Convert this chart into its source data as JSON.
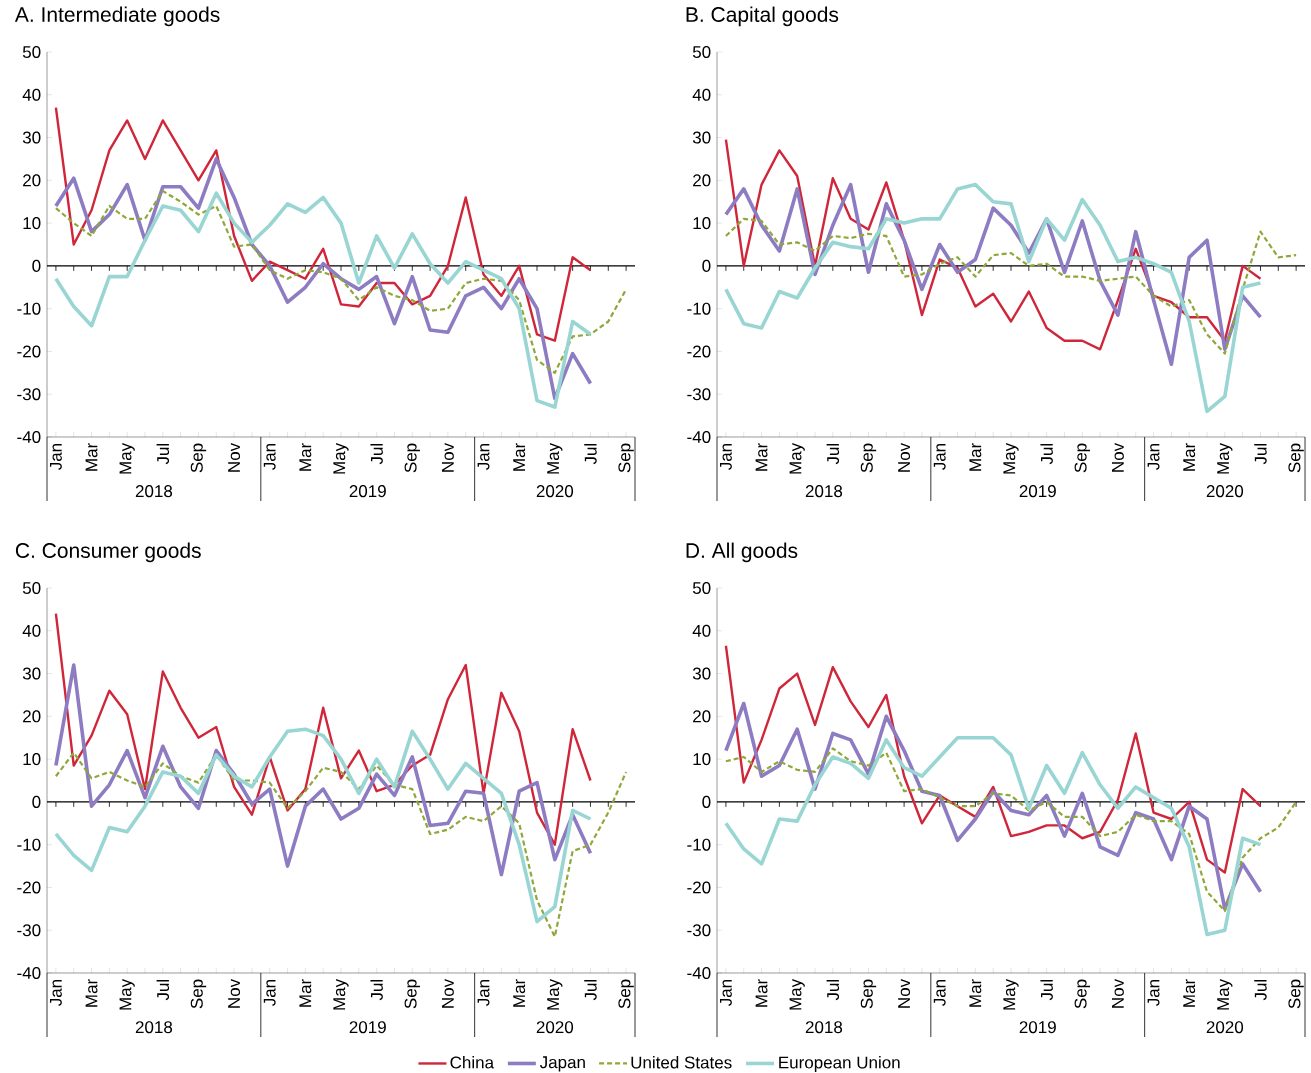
{
  "chart_data": [
    {
      "type": "line",
      "title": "A. Intermediate goods",
      "categories": [
        "Jan",
        null,
        "Mar",
        null,
        "May",
        null,
        "Jul",
        null,
        "Sep",
        null,
        "Nov",
        null,
        "Jan",
        null,
        "Mar",
        null,
        "May",
        null,
        "Jul",
        null,
        "Sep",
        null,
        "Nov",
        null,
        "Jan",
        null,
        "Mar",
        null,
        "May",
        null,
        "Jul",
        null,
        "Sep"
      ],
      "annotations": [
        "2018",
        "2019",
        "2020"
      ],
      "ylim": [
        -40,
        50
      ],
      "yticks": [
        -40,
        -30,
        -20,
        -10,
        0,
        10,
        20,
        30,
        40,
        50
      ],
      "ref_lines": [
        {
          "axis": "y",
          "value": 0
        }
      ],
      "series": [
        {
          "color": "#d0263a",
          "values": [
            37,
            5,
            13,
            27,
            34,
            25,
            34,
            27,
            20,
            27,
            7,
            -3.5,
            1,
            -1,
            -3,
            4,
            -9,
            -9.5,
            -4,
            -4,
            -9,
            -7,
            0,
            16,
            -2,
            -7,
            0,
            -16,
            -17.5,
            2,
            -1,
            null,
            null
          ]
        },
        {
          "color": "#8e7cc3",
          "values": [
            14,
            20.5,
            8,
            12,
            19,
            6,
            18.5,
            18.5,
            13.5,
            25,
            16,
            5,
            0,
            -8.5,
            -5,
            0.5,
            -3,
            -5.5,
            -2.5,
            -13.5,
            -2.5,
            -15,
            -15.5,
            -7,
            -5,
            -10,
            -3,
            -10,
            -31,
            -20.5,
            -27.5,
            null,
            null
          ]
        },
        {
          "color": "#8fa83a",
          "line_style": "dashed",
          "values": [
            13.5,
            10,
            7,
            14,
            11,
            11,
            17.5,
            15,
            12,
            14,
            4.5,
            5,
            -1,
            -3,
            -1,
            -1.5,
            -3,
            -8,
            -5,
            -7,
            -8,
            -10.5,
            -10,
            -4,
            -3,
            -3.5,
            -8,
            -22,
            -25,
            -16.5,
            -16,
            -13,
            -5.5
          ]
        },
        {
          "color": "#99d6d3",
          "values": [
            -3,
            -9.5,
            -14,
            -2.5,
            -2.5,
            6,
            14,
            13,
            8,
            17,
            10,
            5.5,
            9.5,
            14.5,
            12.5,
            16,
            10,
            -4,
            7,
            -0.5,
            7.5,
            0.5,
            -4,
            1,
            -1,
            -3,
            -10,
            -31.5,
            -33,
            -13,
            -16,
            null,
            null
          ]
        }
      ]
    },
    {
      "type": "line",
      "title": "B. Capital goods",
      "categories": [
        "Jan",
        null,
        "Mar",
        null,
        "May",
        null,
        "Jul",
        null,
        "Sep",
        null,
        "Nov",
        null,
        "Jan",
        null,
        "Mar",
        null,
        "May",
        null,
        "Jul",
        null,
        "Sep",
        null,
        "Nov",
        null,
        "Jan",
        null,
        "Mar",
        null,
        "May",
        null,
        "Jul",
        null,
        "Sep"
      ],
      "annotations": [
        "2018",
        "2019",
        "2020"
      ],
      "ylim": [
        -40,
        50
      ],
      "yticks": [
        -40,
        -30,
        -20,
        -10,
        0,
        10,
        20,
        30,
        40,
        50
      ],
      "ref_lines": [
        {
          "axis": "y",
          "value": 0
        }
      ],
      "series": [
        {
          "color": "#d0263a",
          "values": [
            29.5,
            0,
            19,
            27,
            21,
            0,
            20.5,
            11,
            8.5,
            19.5,
            6,
            -11.5,
            1.5,
            -0.5,
            -9.5,
            -6.5,
            -13,
            -6,
            -14.5,
            -17.5,
            -17.5,
            -19.5,
            -8,
            4,
            -7,
            -8.5,
            -12,
            -12,
            -17.5,
            0,
            -3,
            null,
            null
          ]
        },
        {
          "color": "#8e7cc3",
          "values": [
            12,
            18,
            9.5,
            3.5,
            18,
            -2,
            9.5,
            19,
            -1.5,
            14.5,
            6,
            -5.5,
            5,
            -1.5,
            1.5,
            13.5,
            9.5,
            3,
            11,
            -1.5,
            10.5,
            -3.5,
            -11.5,
            8,
            -8,
            -23,
            2,
            6,
            -19.5,
            -7,
            -12,
            null,
            null
          ]
        },
        {
          "color": "#8fa83a",
          "line_style": "dashed",
          "values": [
            7,
            11,
            10.5,
            5,
            5.5,
            3.5,
            7,
            6.5,
            7.5,
            7,
            -2.5,
            -2,
            0.5,
            2,
            -2.5,
            2.5,
            3,
            0,
            0.5,
            -2.5,
            -2.5,
            -3.5,
            -3,
            -2.5,
            -7,
            -9.5,
            -8,
            -16,
            -20.5,
            -5.5,
            8,
            2,
            2.5
          ]
        },
        {
          "color": "#99d6d3",
          "values": [
            -5.5,
            -13.5,
            -14.5,
            -6,
            -7.5,
            -0.5,
            5.5,
            4.5,
            4,
            11,
            10,
            11,
            11,
            18,
            19,
            15,
            14.5,
            1,
            11,
            6,
            15.5,
            9.5,
            1,
            2,
            0.5,
            -1.5,
            -13,
            -34,
            -30.5,
            -5,
            -4,
            null,
            null
          ]
        }
      ]
    },
    {
      "type": "line",
      "title": "C. Consumer goods",
      "categories": [
        "Jan",
        null,
        "Mar",
        null,
        "May",
        null,
        "Jul",
        null,
        "Sep",
        null,
        "Nov",
        null,
        "Jan",
        null,
        "Mar",
        null,
        "May",
        null,
        "Jul",
        null,
        "Sep",
        null,
        "Nov",
        null,
        "Jan",
        null,
        "Mar",
        null,
        "May",
        null,
        "Jul",
        null,
        "Sep"
      ],
      "annotations": [
        "2018",
        "2019",
        "2020"
      ],
      "ylim": [
        -40,
        50
      ],
      "yticks": [
        -40,
        -30,
        -20,
        -10,
        0,
        10,
        20,
        30,
        40,
        50
      ],
      "ref_lines": [
        {
          "axis": "y",
          "value": 0
        }
      ],
      "series": [
        {
          "color": "#d0263a",
          "values": [
            44,
            8.5,
            15.5,
            26,
            20.5,
            3,
            30.5,
            22,
            15,
            17.5,
            3.5,
            -3,
            10.5,
            -2,
            3,
            22,
            5.5,
            12,
            2.5,
            4,
            8.5,
            11,
            24,
            32,
            2,
            25.5,
            16.5,
            -2.5,
            -10,
            17,
            5,
            null,
            null
          ]
        },
        {
          "color": "#8e7cc3",
          "values": [
            8.5,
            32,
            -1,
            4,
            12,
            1,
            13,
            3.5,
            -1.5,
            12,
            6.5,
            -0.5,
            3,
            -15,
            -1,
            3,
            -4,
            -1.5,
            6.5,
            1.5,
            10.5,
            -5.5,
            -5,
            2.5,
            2,
            -17,
            2.5,
            4.5,
            -13.5,
            -3,
            -12,
            null,
            null
          ]
        },
        {
          "color": "#8fa83a",
          "line_style": "dashed",
          "values": [
            6,
            11.5,
            5.5,
            7,
            5,
            3.5,
            9,
            6,
            4.5,
            11,
            5,
            5,
            4.5,
            -1.5,
            2.5,
            8,
            7,
            3,
            8.5,
            4,
            3,
            -7.5,
            -6.5,
            -3.5,
            -4.5,
            -1,
            -5,
            -23,
            -31.5,
            -11.5,
            -10,
            -2.5,
            7
          ]
        },
        {
          "color": "#99d6d3",
          "values": [
            -7.5,
            -12.5,
            -16,
            -6,
            -7,
            -1,
            7,
            6,
            2,
            11,
            6,
            3.5,
            10.5,
            16.5,
            17,
            15.5,
            10,
            2,
            10,
            3.5,
            16.5,
            10,
            3,
            9,
            5.5,
            2,
            -10,
            -28,
            -24.5,
            -2,
            -4,
            null,
            null
          ]
        }
      ]
    },
    {
      "type": "line",
      "title": "D. All goods",
      "legend": "bottom",
      "categories": [
        "Jan",
        null,
        "Mar",
        null,
        "May",
        null,
        "Jul",
        null,
        "Sep",
        null,
        "Nov",
        null,
        "Jan",
        null,
        "Mar",
        null,
        "May",
        null,
        "Jul",
        null,
        "Sep",
        null,
        "Nov",
        null,
        "Jan",
        null,
        "Mar",
        null,
        "May",
        null,
        "Jul",
        null,
        "Sep"
      ],
      "annotations": [
        "2018",
        "2019",
        "2020"
      ],
      "ylim": [
        -40,
        50
      ],
      "yticks": [
        -40,
        -30,
        -20,
        -10,
        0,
        10,
        20,
        30,
        40,
        50
      ],
      "ref_lines": [
        {
          "axis": "y",
          "value": 0
        }
      ],
      "series": [
        {
          "name": "China",
          "color": "#d0263a",
          "values": [
            36.5,
            4.5,
            14.5,
            26.5,
            30,
            18,
            31.5,
            23.5,
            17.5,
            25,
            6,
            -5,
            1.5,
            -1,
            -3.5,
            3.5,
            -8,
            -7,
            -5.5,
            -5.5,
            -8.5,
            -7,
            0.5,
            16,
            -2.5,
            -4,
            0,
            -13.5,
            -16.5,
            3,
            -1,
            null,
            null
          ]
        },
        {
          "name": "Japan",
          "color": "#8e7cc3",
          "values": [
            12,
            23,
            6,
            8.5,
            17,
            3,
            16,
            14.5,
            6.5,
            20,
            12,
            2.5,
            1.5,
            -9,
            -4,
            2.5,
            -2,
            -3,
            1.5,
            -8,
            2,
            -10.5,
            -12.5,
            -2.5,
            -4,
            -13.5,
            -1,
            -4,
            -25,
            -14.5,
            -21,
            null,
            null
          ]
        },
        {
          "name": "United States",
          "color": "#8fa83a",
          "line_style": "dashed",
          "values": [
            9.5,
            10.5,
            7,
            9.5,
            7.5,
            7,
            12.5,
            9.5,
            8.5,
            11.5,
            2.5,
            3,
            1,
            -1,
            -1,
            2,
            1.5,
            -2,
            0,
            -3.5,
            -3.5,
            -8,
            -7,
            -3,
            -4.5,
            -4.5,
            -7.5,
            -21,
            -25.5,
            -13,
            -8.5,
            -6,
            0
          ]
        },
        {
          "name": "European Union",
          "color": "#99d6d3",
          "values": [
            -5,
            -11,
            -14.5,
            -4,
            -4.5,
            4,
            10.5,
            9,
            5.5,
            14.5,
            8,
            6,
            10.5,
            15,
            15,
            15,
            11,
            -1.5,
            8.5,
            2,
            11.5,
            4,
            -1.5,
            3.5,
            1,
            -1.5,
            -10.5,
            -31,
            -30,
            -8.5,
            -10,
            null,
            null
          ]
        }
      ]
    }
  ]
}
